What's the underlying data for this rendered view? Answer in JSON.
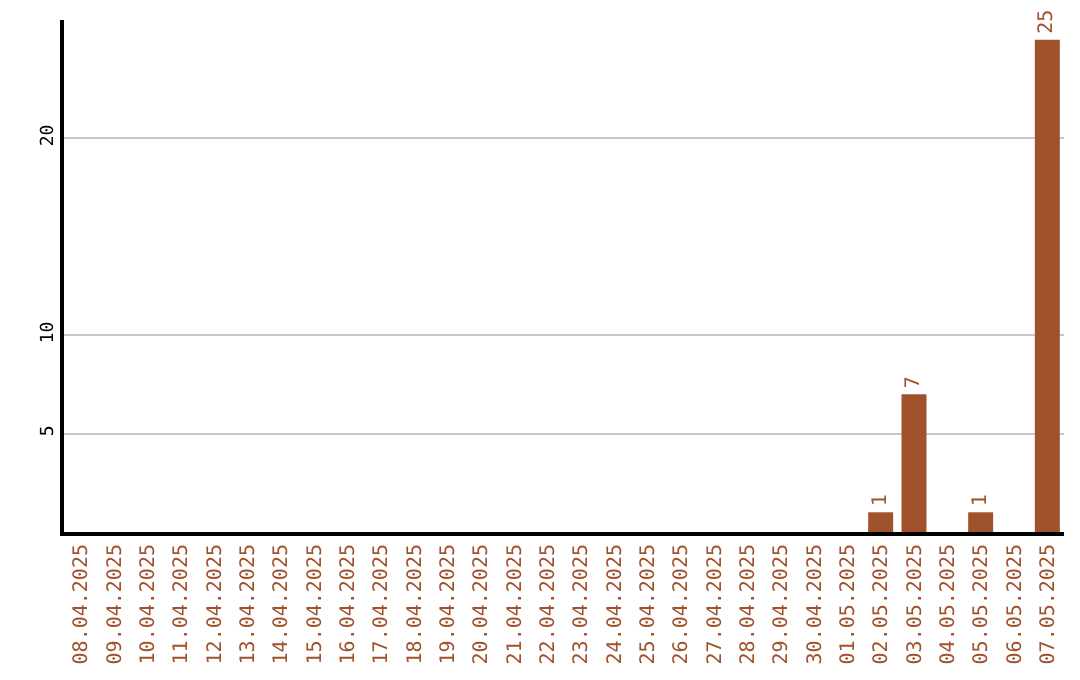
{
  "chart_data": {
    "type": "bar",
    "categories": [
      "08.04.2025",
      "09.04.2025",
      "10.04.2025",
      "11.04.2025",
      "12.04.2025",
      "13.04.2025",
      "14.04.2025",
      "15.04.2025",
      "16.04.2025",
      "17.04.2025",
      "18.04.2025",
      "19.04.2025",
      "20.04.2025",
      "21.04.2025",
      "22.04.2025",
      "23.04.2025",
      "24.04.2025",
      "25.04.2025",
      "26.04.2025",
      "27.04.2025",
      "28.04.2025",
      "29.04.2025",
      "30.04.2025",
      "01.05.2025",
      "02.05.2025",
      "03.05.2025",
      "04.05.2025",
      "05.05.2025",
      "06.05.2025",
      "07.05.2025"
    ],
    "values": [
      0,
      0,
      0,
      0,
      0,
      0,
      0,
      0,
      0,
      0,
      0,
      0,
      0,
      0,
      0,
      0,
      0,
      0,
      0,
      0,
      0,
      0,
      0,
      0,
      1,
      7,
      0,
      1,
      0,
      25
    ],
    "value_labels": [
      null,
      null,
      null,
      null,
      null,
      null,
      null,
      null,
      null,
      null,
      null,
      null,
      null,
      null,
      null,
      null,
      null,
      null,
      null,
      null,
      null,
      null,
      null,
      null,
      "1",
      "7",
      null,
      "1",
      null,
      "25"
    ],
    "color": "#a0522d",
    "ylim": [
      0,
      26
    ],
    "yticks": [
      5,
      10,
      20
    ],
    "grid": "y"
  }
}
